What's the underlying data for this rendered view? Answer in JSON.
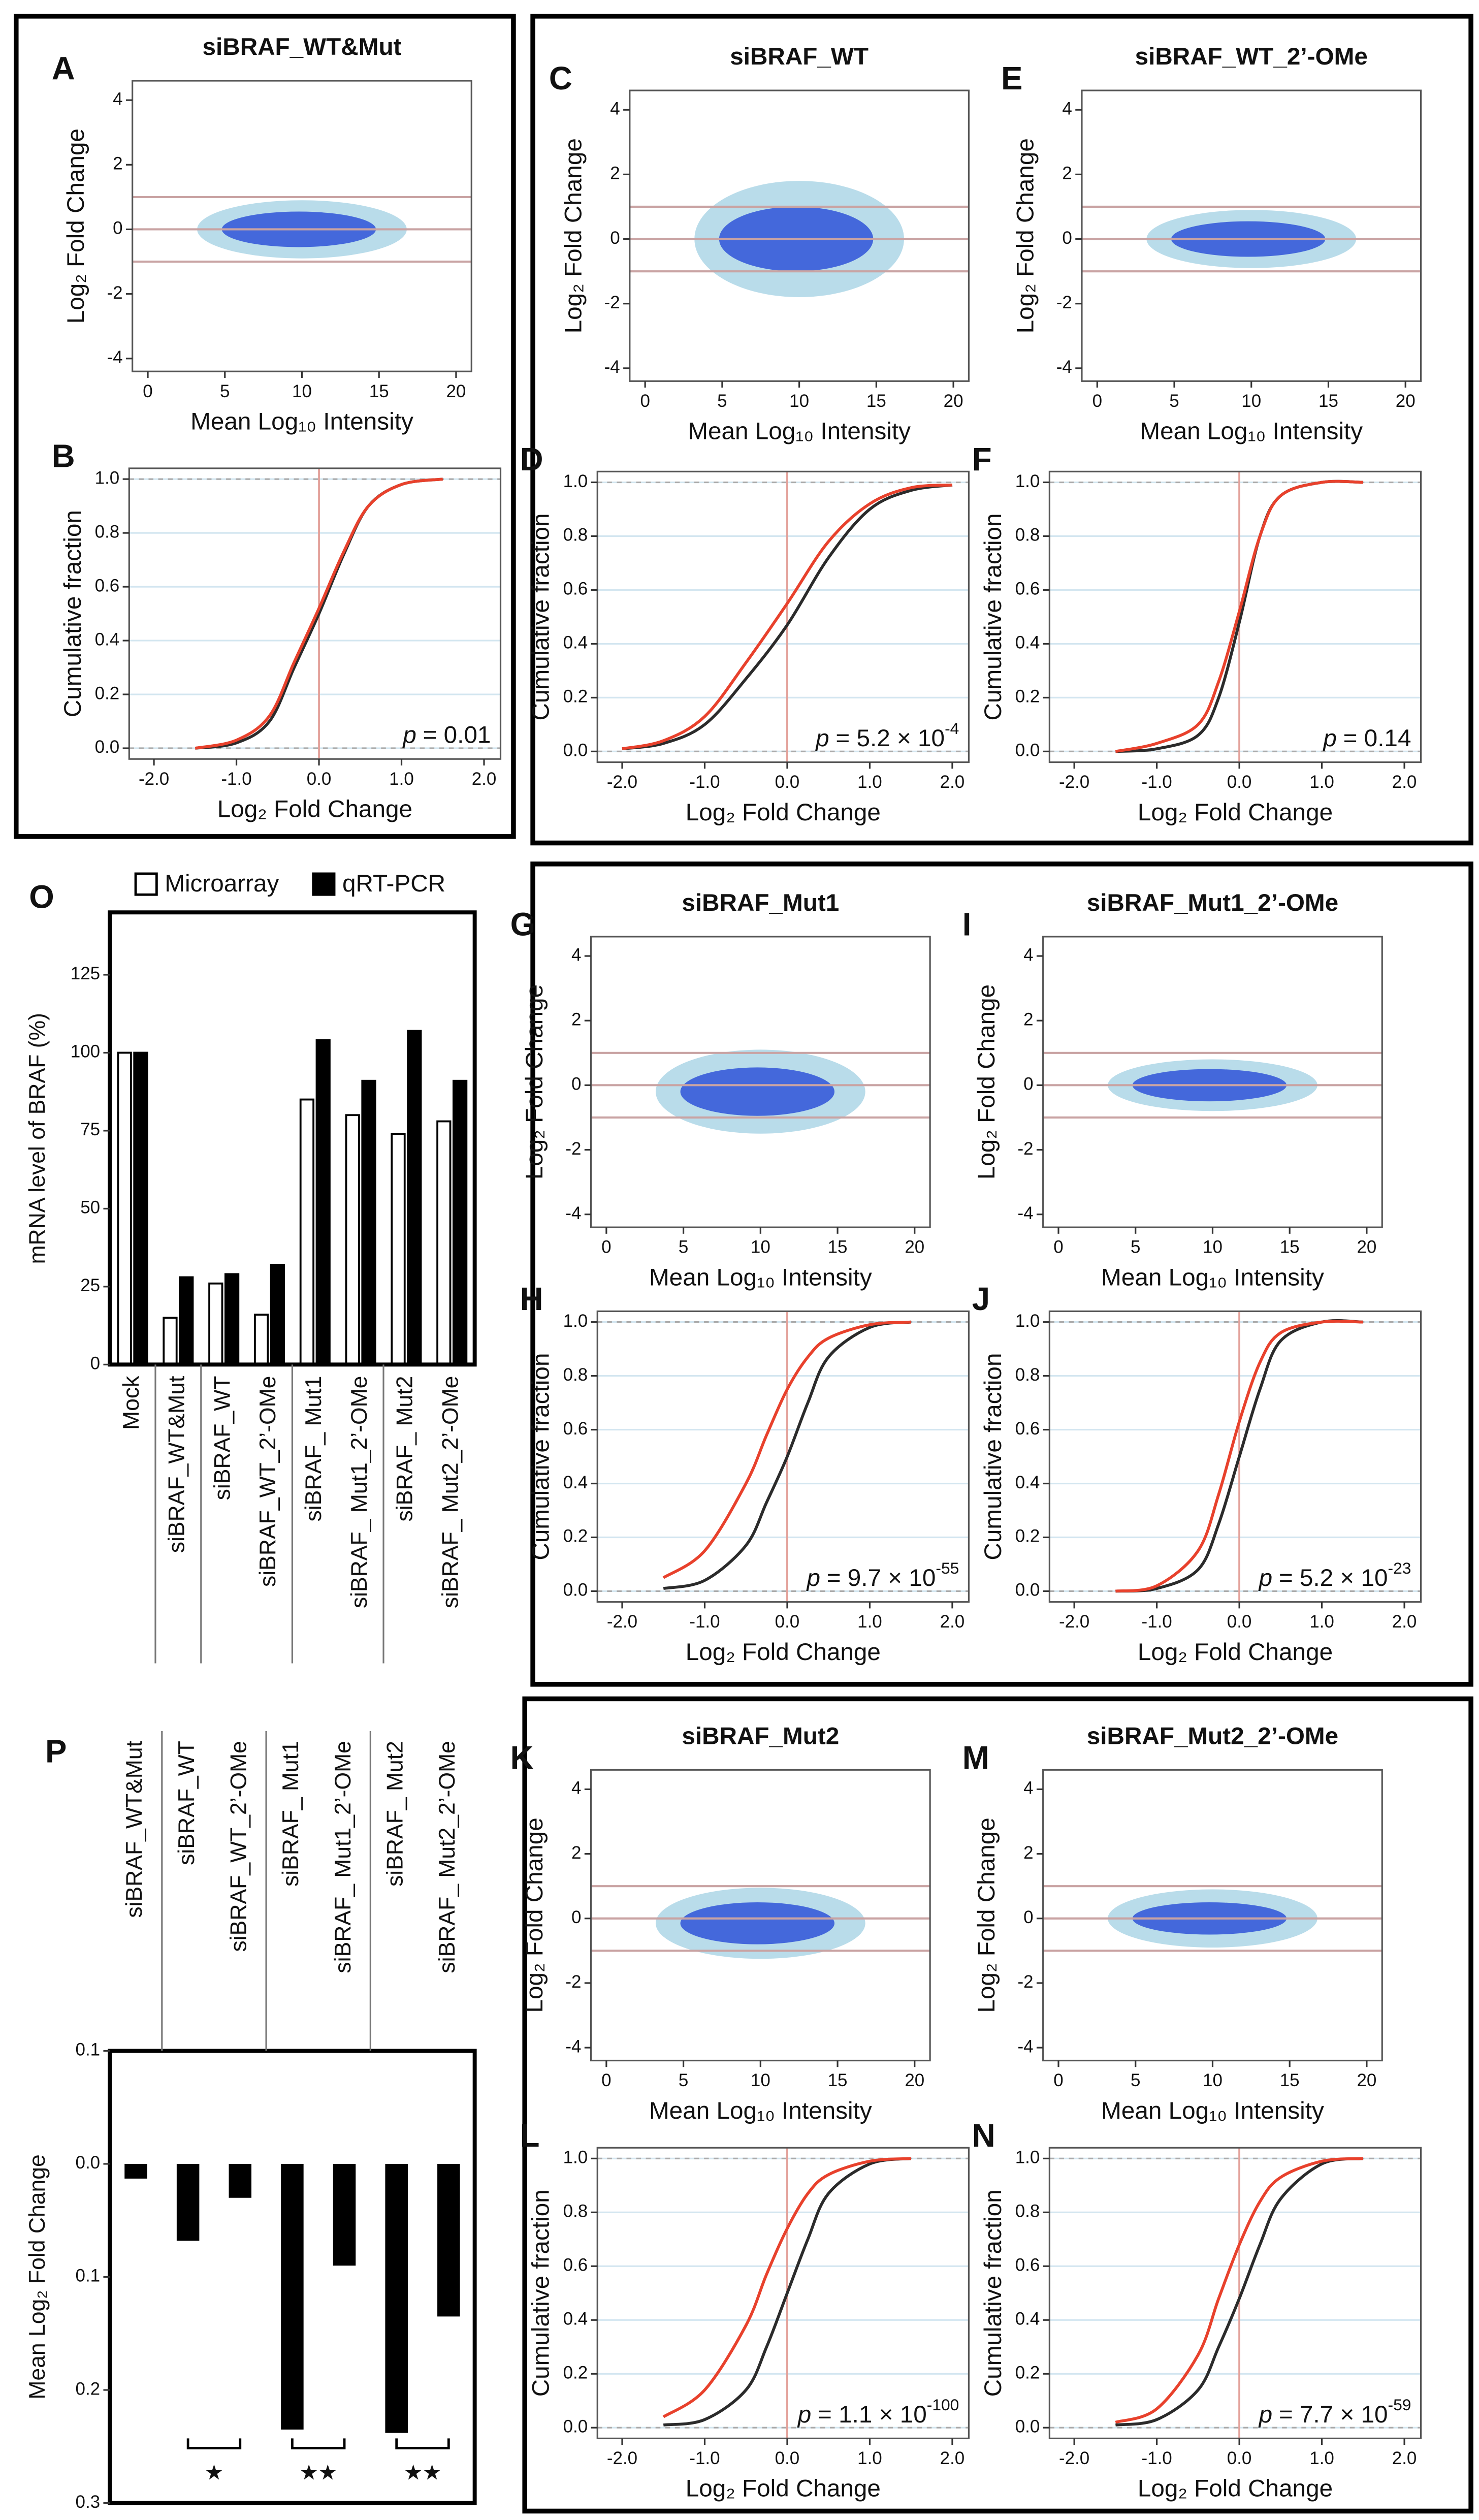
{
  "chart_data": [
    {
      "type": "scatter",
      "label": "A",
      "title": "siBRAF_WT&Mut",
      "xlabel": "Mean Log₁₀ Intensity",
      "ylabel": "Log₂ Fold Change",
      "xlim": [
        -1,
        21
      ],
      "xticks": [
        0,
        5,
        10,
        15,
        20
      ],
      "ylim": [
        -4.4,
        4.6
      ],
      "yticks": [
        -4,
        -2,
        0,
        2,
        4
      ],
      "hlines": [
        -1,
        0,
        1
      ]
    },
    {
      "type": "line",
      "label": "B",
      "xlabel": "Log₂ Fold Change",
      "ylabel": "Cumulative fraction",
      "xlim": [
        -2.3,
        2.2
      ],
      "xticks": [
        {
          "value": -2,
          "label": "-2.0"
        },
        {
          "value": -1,
          "label": "-1.0"
        },
        {
          "value": 0,
          "label": "0.0"
        },
        {
          "value": 1,
          "label": "1.0"
        },
        {
          "value": 2,
          "label": "2.0"
        }
      ],
      "ylim": [
        -0.04,
        1.04
      ],
      "yticks": [
        {
          "value": 0,
          "label": "0.0"
        },
        {
          "value": 0.2,
          "label": "0.2"
        },
        {
          "value": 0.4,
          "label": "0.4"
        },
        {
          "value": 0.6,
          "label": "0.6"
        },
        {
          "value": 0.8,
          "label": "0.8"
        },
        {
          "value": 1,
          "label": "1.0"
        }
      ],
      "hlines": [
        0,
        1
      ],
      "vline": 0,
      "p": {
        "symbol": "p",
        "text": "= 0.01"
      },
      "x": [
        -1.5,
        -1,
        -0.6,
        -0.3,
        0,
        0.3,
        0.6,
        1,
        1.5
      ],
      "series": [
        {
          "color": "#2b2b2b",
          "values": [
            0,
            0.02,
            0.1,
            0.3,
            0.5,
            0.72,
            0.9,
            0.98,
            1
          ]
        },
        {
          "color": "#e8412c",
          "values": [
            0,
            0.03,
            0.12,
            0.32,
            0.52,
            0.73,
            0.9,
            0.98,
            1
          ]
        }
      ]
    },
    {
      "type": "scatter",
      "label": "C",
      "title": "siBRAF_WT",
      "xlabel": "Mean Log₁₀ Intensity",
      "ylabel": "Log₂ Fold Change",
      "xlim": [
        -1,
        21
      ],
      "xticks": [
        0,
        5,
        10,
        15,
        20
      ],
      "ylim": [
        -4.4,
        4.6
      ],
      "yticks": [
        -4,
        -2,
        0,
        2,
        4
      ],
      "hlines": [
        -1,
        0,
        1
      ]
    },
    {
      "type": "line",
      "label": "D",
      "xlabel": "Log₂ Fold Change",
      "ylabel": "Cumulative fraction",
      "xlim": [
        -2.3,
        2.2
      ],
      "xticks": [
        {
          "value": -2,
          "label": "-2.0"
        },
        {
          "value": -1,
          "label": "-1.0"
        },
        {
          "value": 0,
          "label": "0.0"
        },
        {
          "value": 1,
          "label": "1.0"
        },
        {
          "value": 2,
          "label": "2.0"
        }
      ],
      "ylim": [
        -0.04,
        1.04
      ],
      "yticks": [
        {
          "value": 0,
          "label": "0.0"
        },
        {
          "value": 0.2,
          "label": "0.2"
        },
        {
          "value": 0.4,
          "label": "0.4"
        },
        {
          "value": 0.6,
          "label": "0.6"
        },
        {
          "value": 0.8,
          "label": "0.8"
        },
        {
          "value": 1,
          "label": "1.0"
        }
      ],
      "hlines": [
        0,
        1
      ],
      "vline": 0,
      "p": {
        "symbol": "p",
        "text": "= 5.2 × 10",
        "exp": "-4"
      },
      "x": [
        -2,
        -1.5,
        -1,
        -0.5,
        0,
        0.5,
        1,
        1.5,
        2
      ],
      "series": [
        {
          "color": "#2b2b2b",
          "values": [
            0.01,
            0.03,
            0.1,
            0.27,
            0.47,
            0.72,
            0.9,
            0.97,
            0.99
          ]
        },
        {
          "color": "#e8412c",
          "values": [
            0.01,
            0.04,
            0.13,
            0.33,
            0.55,
            0.78,
            0.92,
            0.98,
            0.99
          ]
        }
      ]
    },
    {
      "type": "scatter",
      "label": "E",
      "title": "siBRAF_WT_2’-OMe",
      "xlabel": "Mean Log₁₀ Intensity",
      "ylabel": "Log₂ Fold Change",
      "xlim": [
        -1,
        21
      ],
      "xticks": [
        0,
        5,
        10,
        15,
        20
      ],
      "ylim": [
        -4.4,
        4.6
      ],
      "yticks": [
        -4,
        -2,
        0,
        2,
        4
      ],
      "hlines": [
        -1,
        0,
        1
      ]
    },
    {
      "type": "line",
      "label": "F",
      "xlabel": "Log₂ Fold Change",
      "ylabel": "Cumulative fraction",
      "xlim": [
        -2.3,
        2.2
      ],
      "xticks": [
        {
          "value": -2,
          "label": "-2.0"
        },
        {
          "value": -1,
          "label": "-1.0"
        },
        {
          "value": 0,
          "label": "0.0"
        },
        {
          "value": 1,
          "label": "1.0"
        },
        {
          "value": 2,
          "label": "2.0"
        }
      ],
      "ylim": [
        -0.04,
        1.04
      ],
      "yticks": [
        {
          "value": 0,
          "label": "0.0"
        },
        {
          "value": 0.2,
          "label": "0.2"
        },
        {
          "value": 0.4,
          "label": "0.4"
        },
        {
          "value": 0.6,
          "label": "0.6"
        },
        {
          "value": 0.8,
          "label": "0.8"
        },
        {
          "value": 1,
          "label": "1.0"
        }
      ],
      "hlines": [
        0,
        1
      ],
      "vline": 0,
      "p": {
        "symbol": "p",
        "text": "= 0.14"
      },
      "x": [
        -1.5,
        -1,
        -0.5,
        -0.25,
        0,
        0.25,
        0.5,
        1,
        1.5
      ],
      "series": [
        {
          "color": "#2b2b2b",
          "values": [
            0,
            0.01,
            0.06,
            0.2,
            0.48,
            0.8,
            0.95,
            1,
            1
          ]
        },
        {
          "color": "#e8412c",
          "values": [
            0,
            0.03,
            0.1,
            0.26,
            0.52,
            0.8,
            0.95,
            1,
            1
          ]
        }
      ]
    },
    {
      "type": "scatter",
      "label": "G",
      "title": "siBRAF_Mut1",
      "xlabel": "Mean Log₁₀ Intensity",
      "ylabel": "Log₂ Fold Change",
      "xlim": [
        -1,
        21
      ],
      "xticks": [
        0,
        5,
        10,
        15,
        20
      ],
      "ylim": [
        -4.4,
        4.6
      ],
      "yticks": [
        -4,
        -2,
        0,
        2,
        4
      ],
      "hlines": [
        -1,
        0,
        1
      ]
    },
    {
      "type": "line",
      "label": "H",
      "xlabel": "Log₂ Fold Change",
      "ylabel": "Cumulative fraction",
      "xlim": [
        -2.3,
        2.2
      ],
      "xticks": [
        {
          "value": -2,
          "label": "-2.0"
        },
        {
          "value": -1,
          "label": "-1.0"
        },
        {
          "value": 0,
          "label": "0.0"
        },
        {
          "value": 1,
          "label": "1.0"
        },
        {
          "value": 2,
          "label": "2.0"
        }
      ],
      "ylim": [
        -0.04,
        1.04
      ],
      "yticks": [
        {
          "value": 0,
          "label": "0.0"
        },
        {
          "value": 0.2,
          "label": "0.2"
        },
        {
          "value": 0.4,
          "label": "0.4"
        },
        {
          "value": 0.6,
          "label": "0.6"
        },
        {
          "value": 0.8,
          "label": "0.8"
        },
        {
          "value": 1,
          "label": "1.0"
        }
      ],
      "hlines": [
        0,
        1
      ],
      "vline": 0,
      "p": {
        "symbol": "p",
        "text": "= 9.7 × 10",
        "exp": "-55"
      },
      "x": [
        -1.5,
        -1,
        -0.5,
        -0.25,
        0,
        0.25,
        0.5,
        1,
        1.5
      ],
      "series": [
        {
          "color": "#2b2b2b",
          "values": [
            0.01,
            0.04,
            0.17,
            0.33,
            0.5,
            0.7,
            0.87,
            0.98,
            1
          ]
        },
        {
          "color": "#e8412c",
          "values": [
            0.05,
            0.15,
            0.4,
            0.58,
            0.75,
            0.87,
            0.94,
            0.99,
            1
          ]
        }
      ]
    },
    {
      "type": "scatter",
      "label": "I",
      "title": "siBRAF_Mut1_2’-OMe",
      "xlabel": "Mean Log₁₀ Intensity",
      "ylabel": "Log₂ Fold Change",
      "xlim": [
        -1,
        21
      ],
      "xticks": [
        0,
        5,
        10,
        15,
        20
      ],
      "ylim": [
        -4.4,
        4.6
      ],
      "yticks": [
        -4,
        -2,
        0,
        2,
        4
      ],
      "hlines": [
        -1,
        0,
        1
      ]
    },
    {
      "type": "line",
      "label": "J",
      "xlabel": "Log₂ Fold Change",
      "ylabel": "Cumulative fraction",
      "xlim": [
        -2.3,
        2.2
      ],
      "xticks": [
        {
          "value": -2,
          "label": "-2.0"
        },
        {
          "value": -1,
          "label": "-1.0"
        },
        {
          "value": 0,
          "label": "0.0"
        },
        {
          "value": 1,
          "label": "1.0"
        },
        {
          "value": 2,
          "label": "2.0"
        }
      ],
      "ylim": [
        -0.04,
        1.04
      ],
      "yticks": [
        {
          "value": 0,
          "label": "0.0"
        },
        {
          "value": 0.2,
          "label": "0.2"
        },
        {
          "value": 0.4,
          "label": "0.4"
        },
        {
          "value": 0.6,
          "label": "0.6"
        },
        {
          "value": 0.8,
          "label": "0.8"
        },
        {
          "value": 1,
          "label": "1.0"
        }
      ],
      "hlines": [
        0,
        1
      ],
      "vline": 0,
      "p": {
        "symbol": "p",
        "text": "= 5.2 × 10",
        "exp": "-23"
      },
      "x": [
        -1.5,
        -1,
        -0.5,
        -0.25,
        0,
        0.25,
        0.5,
        1,
        1.5
      ],
      "series": [
        {
          "color": "#2b2b2b",
          "values": [
            0,
            0.01,
            0.08,
            0.25,
            0.5,
            0.75,
            0.93,
            1,
            1
          ]
        },
        {
          "color": "#e8412c",
          "values": [
            0,
            0.02,
            0.15,
            0.36,
            0.63,
            0.85,
            0.96,
            1,
            1
          ]
        }
      ]
    },
    {
      "type": "scatter",
      "label": "K",
      "title": "siBRAF_Mut2",
      "xlabel": "Mean Log₁₀ Intensity",
      "ylabel": "Log₂ Fold Change",
      "xlim": [
        -1,
        21
      ],
      "xticks": [
        0,
        5,
        10,
        15,
        20
      ],
      "ylim": [
        -4.4,
        4.6
      ],
      "yticks": [
        -4,
        -2,
        0,
        2,
        4
      ],
      "hlines": [
        -1,
        0,
        1
      ]
    },
    {
      "type": "line",
      "label": "L",
      "xlabel": "Log₂ Fold Change",
      "ylabel": "Cumulative fraction",
      "xlim": [
        -2.3,
        2.2
      ],
      "xticks": [
        {
          "value": -2,
          "label": "-2.0"
        },
        {
          "value": -1,
          "label": "-1.0"
        },
        {
          "value": 0,
          "label": "0.0"
        },
        {
          "value": 1,
          "label": "1.0"
        },
        {
          "value": 2,
          "label": "2.0"
        }
      ],
      "ylim": [
        -0.04,
        1.04
      ],
      "yticks": [
        {
          "value": 0,
          "label": "0.0"
        },
        {
          "value": 0.2,
          "label": "0.2"
        },
        {
          "value": 0.4,
          "label": "0.4"
        },
        {
          "value": 0.6,
          "label": "0.6"
        },
        {
          "value": 0.8,
          "label": "0.8"
        },
        {
          "value": 1,
          "label": "1.0"
        }
      ],
      "hlines": [
        0,
        1
      ],
      "vline": 0,
      "p": {
        "symbol": "p",
        "text": "= 1.1 × 10",
        "exp": "-100"
      },
      "x": [
        -1.5,
        -1,
        -0.5,
        -0.25,
        0,
        0.25,
        0.5,
        1,
        1.5
      ],
      "series": [
        {
          "color": "#2b2b2b",
          "values": [
            0.01,
            0.03,
            0.14,
            0.3,
            0.5,
            0.7,
            0.87,
            0.98,
            1
          ]
        },
        {
          "color": "#e8412c",
          "values": [
            0.04,
            0.14,
            0.38,
            0.57,
            0.74,
            0.87,
            0.94,
            0.99,
            1
          ]
        }
      ]
    },
    {
      "type": "scatter",
      "label": "M",
      "title": "siBRAF_Mut2_2’-OMe",
      "xlabel": "Mean Log₁₀ Intensity",
      "ylabel": "Log₂ Fold Change",
      "xlim": [
        -1,
        21
      ],
      "xticks": [
        0,
        5,
        10,
        15,
        20
      ],
      "ylim": [
        -4.4,
        4.6
      ],
      "yticks": [
        -4,
        -2,
        0,
        2,
        4
      ],
      "hlines": [
        -1,
        0,
        1
      ]
    },
    {
      "type": "line",
      "label": "N",
      "xlabel": "Log₂ Fold Change",
      "ylabel": "Cumulative fraction",
      "xlim": [
        -2.3,
        2.2
      ],
      "xticks": [
        {
          "value": -2,
          "label": "-2.0"
        },
        {
          "value": -1,
          "label": "-1.0"
        },
        {
          "value": 0,
          "label": "0.0"
        },
        {
          "value": 1,
          "label": "1.0"
        },
        {
          "value": 2,
          "label": "2.0"
        }
      ],
      "ylim": [
        -0.04,
        1.04
      ],
      "yticks": [
        {
          "value": 0,
          "label": "0.0"
        },
        {
          "value": 0.2,
          "label": "0.2"
        },
        {
          "value": 0.4,
          "label": "0.4"
        },
        {
          "value": 0.6,
          "label": "0.6"
        },
        {
          "value": 0.8,
          "label": "0.8"
        },
        {
          "value": 1,
          "label": "1.0"
        }
      ],
      "hlines": [
        0,
        1
      ],
      "vline": 0,
      "p": {
        "symbol": "p",
        "text": "= 7.7 × 10",
        "exp": "-59"
      },
      "x": [
        -1.5,
        -1,
        -0.5,
        -0.25,
        0,
        0.25,
        0.5,
        1,
        1.5
      ],
      "series": [
        {
          "color": "#2b2b2b",
          "values": [
            0.01,
            0.03,
            0.14,
            0.3,
            0.48,
            0.68,
            0.85,
            0.98,
            1
          ]
        },
        {
          "color": "#e8412c",
          "values": [
            0.02,
            0.07,
            0.27,
            0.48,
            0.68,
            0.84,
            0.93,
            0.99,
            1
          ]
        }
      ]
    },
    {
      "type": "bar",
      "label": "O",
      "ylabel": "mRNA level of BRAF (%)",
      "categories": [
        "Mock",
        "siBRAF_WT&Mut",
        "siBRAF_WT",
        "siBRAF_WT_2’-OMe",
        "siBRAF_ Mut1",
        "siBRAF_ Mut1_2’-OMe",
        "siBRAF_ Mut2",
        "siBRAF_ Mut2_2’-OMe"
      ],
      "series": [
        {
          "name": "Microarray",
          "color": "#ffffff",
          "values": [
            100,
            15,
            26,
            16,
            85,
            80,
            74,
            78
          ]
        },
        {
          "name": "qRT-PCR",
          "color": "#000000",
          "values": [
            100,
            28,
            29,
            32,
            104,
            91,
            107,
            91
          ]
        }
      ],
      "ylim": [
        0,
        145
      ],
      "yticks": [
        0,
        25,
        50,
        75,
        100,
        125
      ]
    },
    {
      "type": "bar",
      "label": "P",
      "ylabel": "Mean Log₂ Fold Change",
      "categories": [
        "siBRAF_WT&Mut",
        "siBRAF_WT",
        "siBRAF_WT_2’-OMe",
        "siBRAF_ Mut1",
        "siBRAF_ Mut1_2’-OMe",
        "siBRAF_ Mut2",
        "siBRAF_ Mut2_2’-OMe"
      ],
      "values": [
        -0.013,
        -0.068,
        -0.03,
        -0.235,
        -0.09,
        -0.238,
        -0.135
      ],
      "color": "#000000",
      "ylim": [
        -0.3,
        0.1
      ],
      "yticks": [
        {
          "value": 0.1,
          "label": "0.1"
        },
        {
          "value": 0,
          "label": "0.0"
        },
        {
          "value": -0.1,
          "label": "0.1"
        },
        {
          "value": -0.2,
          "label": "0.2"
        },
        {
          "value": -0.3,
          "label": "0.3"
        }
      ],
      "annotations": [
        "★",
        "★★",
        "★★"
      ]
    }
  ]
}
